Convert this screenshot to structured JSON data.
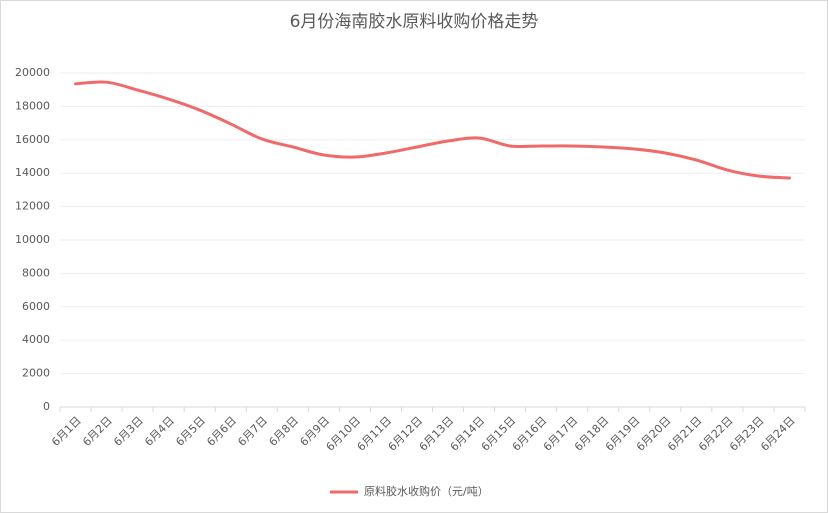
{
  "chart_data": {
    "type": "line",
    "title": "6月份海南胶水原料收购价格走势",
    "categories": [
      "6月1日",
      "6月2日",
      "6月3日",
      "6月4日",
      "6月5日",
      "6月6日",
      "6月7日",
      "6月8日",
      "6月9日",
      "6月10日",
      "6月11日",
      "6月12日",
      "6月13日",
      "6月14日",
      "6月15日",
      "6月16日",
      "6月17日",
      "6月18日",
      "6月19日",
      "6月20日",
      "6月21日",
      "6月22日",
      "6月23日",
      "6月24日"
    ],
    "series": [
      {
        "name": "原料胶水收购价（元/吨）",
        "color": "#f06a6a",
        "values": [
          19350,
          19450,
          18980,
          18440,
          17780,
          16950,
          16050,
          15570,
          15090,
          14970,
          15210,
          15570,
          15930,
          16110,
          15630,
          15630,
          15630,
          15570,
          15450,
          15210,
          14790,
          14190,
          13830,
          13710
        ]
      }
    ],
    "ylim": [
      0,
      20000
    ],
    "yticks": [
      0,
      2000,
      4000,
      6000,
      8000,
      10000,
      12000,
      14000,
      16000,
      18000,
      20000
    ],
    "grid": true,
    "legend": "bottom"
  }
}
